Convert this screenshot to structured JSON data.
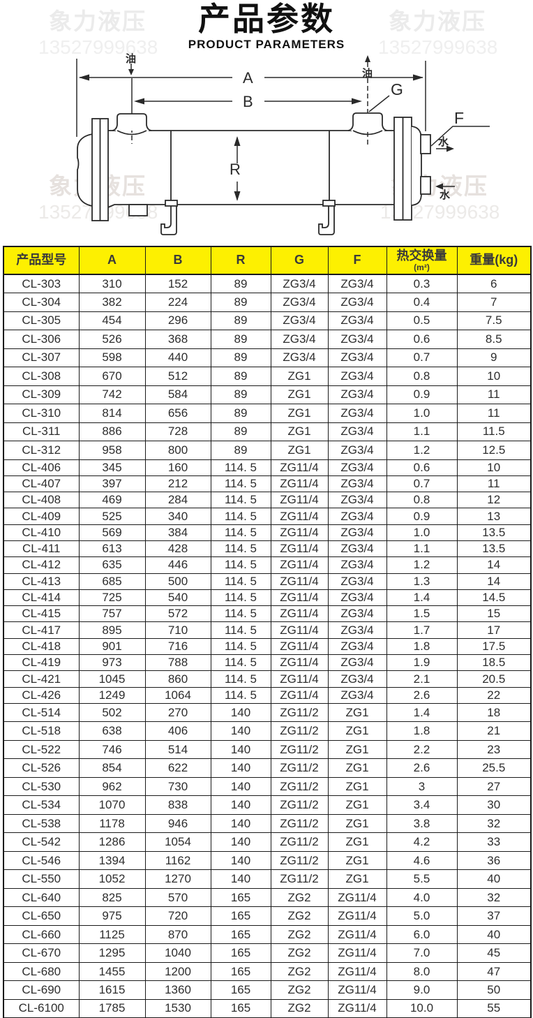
{
  "header": {
    "title": "产品参数",
    "subtitle": "PRODUCT PARAMETERS"
  },
  "watermark": {
    "brand": "象力液压",
    "phone": "13527999638"
  },
  "diagram": {
    "labels": {
      "dim_a": "A",
      "dim_b": "B",
      "dim_r": "R",
      "dim_g": "G",
      "dim_f": "F",
      "oil_left": "油",
      "oil_right": "油",
      "water_top": "水",
      "water_bottom": "水"
    }
  },
  "colors": {
    "table_header_bg": "#FDF001",
    "table_border": "#1a1a1a",
    "line_color": "#2a2a2a",
    "watermark": "#ebebeb"
  },
  "table": {
    "columns": [
      {
        "key": "model",
        "label": "产品型号"
      },
      {
        "key": "a",
        "label": "A"
      },
      {
        "key": "b",
        "label": "B"
      },
      {
        "key": "r",
        "label": "R"
      },
      {
        "key": "g",
        "label": "G"
      },
      {
        "key": "f",
        "label": "F"
      },
      {
        "key": "heat",
        "label": "热交换量",
        "sub": "(m²)"
      },
      {
        "key": "weight",
        "label": "重量(kg)"
      }
    ],
    "rows": [
      [
        "CL-303",
        "310",
        "152",
        "89",
        "ZG3/4",
        "ZG3/4",
        "0.3",
        "6"
      ],
      [
        "CL-304",
        "382",
        "224",
        "89",
        "ZG3/4",
        "ZG3/4",
        "0.4",
        "7"
      ],
      [
        "CL-305",
        "454",
        "296",
        "89",
        "ZG3/4",
        "ZG3/4",
        "0.5",
        "7.5"
      ],
      [
        "CL-306",
        "526",
        "368",
        "89",
        "ZG3/4",
        "ZG3/4",
        "0.6",
        "8.5"
      ],
      [
        "CL-307",
        "598",
        "440",
        "89",
        "ZG3/4",
        "ZG3/4",
        "0.7",
        "9"
      ],
      [
        "CL-308",
        "670",
        "512",
        "89",
        "ZG1",
        "ZG3/4",
        "0.8",
        "10"
      ],
      [
        "CL-309",
        "742",
        "584",
        "89",
        "ZG1",
        "ZG3/4",
        "0.9",
        "11"
      ],
      [
        "CL-310",
        "814",
        "656",
        "89",
        "ZG1",
        "ZG3/4",
        "1.0",
        "11"
      ],
      [
        "CL-311",
        "886",
        "728",
        "89",
        "ZG1",
        "ZG3/4",
        "1.1",
        "11.5"
      ],
      [
        "CL-312",
        "958",
        "800",
        "89",
        "ZG1",
        "ZG3/4",
        "1.2",
        "12.5"
      ],
      [
        "CL-406",
        "345",
        "160",
        "114. 5",
        "ZG11/4",
        "ZG3/4",
        "0.6",
        "10"
      ],
      [
        "CL-407",
        "397",
        "212",
        "114. 5",
        "ZG11/4",
        "ZG3/4",
        "0.7",
        "11"
      ],
      [
        "CL-408",
        "469",
        "284",
        "114. 5",
        "ZG11/4",
        "ZG3/4",
        "0.8",
        "12"
      ],
      [
        "CL-409",
        "525",
        "340",
        "114. 5",
        "ZG11/4",
        "ZG3/4",
        "0.9",
        "13"
      ],
      [
        "CL-410",
        "569",
        "384",
        "114. 5",
        "ZG11/4",
        "ZG3/4",
        "1.0",
        "13.5"
      ],
      [
        "CL-411",
        "613",
        "428",
        "114. 5",
        "ZG11/4",
        "ZG3/4",
        "1.1",
        "13.5"
      ],
      [
        "CL-412",
        "635",
        "446",
        "114. 5",
        "ZG11/4",
        "ZG3/4",
        "1.2",
        "14"
      ],
      [
        "CL-413",
        "685",
        "500",
        "114. 5",
        "ZG11/4",
        "ZG3/4",
        "1.3",
        "14"
      ],
      [
        "CL-414",
        "725",
        "540",
        "114. 5",
        "ZG11/4",
        "ZG3/4",
        "1.4",
        "14.5"
      ],
      [
        "CL-415",
        "757",
        "572",
        "114. 5",
        "ZG11/4",
        "ZG3/4",
        "1.5",
        "15"
      ],
      [
        "CL-417",
        "895",
        "710",
        "114. 5",
        "ZG11/4",
        "ZG3/4",
        "1.7",
        "17"
      ],
      [
        "CL-418",
        "901",
        "716",
        "114. 5",
        "ZG11/4",
        "ZG3/4",
        "1.8",
        "17.5"
      ],
      [
        "CL-419",
        "973",
        "788",
        "114. 5",
        "ZG11/4",
        "ZG3/4",
        "1.9",
        "18.5"
      ],
      [
        "CL-421",
        "1045",
        "860",
        "114. 5",
        "ZG11/4",
        "ZG3/4",
        "2.1",
        "20.5"
      ],
      [
        "CL-426",
        "1249",
        "1064",
        "114. 5",
        "ZG11/4",
        "ZG3/4",
        "2.6",
        "22"
      ],
      [
        "CL-514",
        "502",
        "270",
        "140",
        "ZG11/2",
        "ZG1",
        "1.4",
        "18"
      ],
      [
        "CL-518",
        "638",
        "406",
        "140",
        "ZG11/2",
        "ZG1",
        "1.8",
        "21"
      ],
      [
        "CL-522",
        "746",
        "514",
        "140",
        "ZG11/2",
        "ZG1",
        "2.2",
        "23"
      ],
      [
        "CL-526",
        "854",
        "622",
        "140",
        "ZG11/2",
        "ZG1",
        "2.6",
        "25.5"
      ],
      [
        "CL-530",
        "962",
        "730",
        "140",
        "ZG11/2",
        "ZG1",
        "3",
        "27"
      ],
      [
        "CL-534",
        "1070",
        "838",
        "140",
        "ZG11/2",
        "ZG1",
        "3.4",
        "30"
      ],
      [
        "CL-538",
        "1178",
        "946",
        "140",
        "ZG11/2",
        "ZG1",
        "3.8",
        "32"
      ],
      [
        "CL-542",
        "1286",
        "1054",
        "140",
        "ZG11/2",
        "ZG1",
        "4.2",
        "33"
      ],
      [
        "CL-546",
        "1394",
        "1162",
        "140",
        "ZG11/2",
        "ZG1",
        "4.6",
        "36"
      ],
      [
        "CL-550",
        "1052",
        "1270",
        "140",
        "ZG11/2",
        "ZG1",
        "5.5",
        "40"
      ],
      [
        "CL-640",
        "825",
        "570",
        "165",
        "ZG2",
        "ZG11/4",
        "4.0",
        "32"
      ],
      [
        "CL-650",
        "975",
        "720",
        "165",
        "ZG2",
        "ZG11/4",
        "5.0",
        "37"
      ],
      [
        "CL-660",
        "1125",
        "870",
        "165",
        "ZG2",
        "ZG11/4",
        "6.0",
        "40"
      ],
      [
        "CL-670",
        "1295",
        "1040",
        "165",
        "ZG2",
        "ZG11/4",
        "7.0",
        "45"
      ],
      [
        "CL-680",
        "1455",
        "1200",
        "165",
        "ZG2",
        "ZG11/4",
        "8.0",
        "47"
      ],
      [
        "CL-690",
        "1615",
        "1360",
        "165",
        "ZG2",
        "ZG11/4",
        "9.0",
        "50"
      ],
      [
        "CL-6100",
        "1785",
        "1530",
        "165",
        "ZG2",
        "ZG11/4",
        "10.0",
        "55"
      ]
    ]
  }
}
